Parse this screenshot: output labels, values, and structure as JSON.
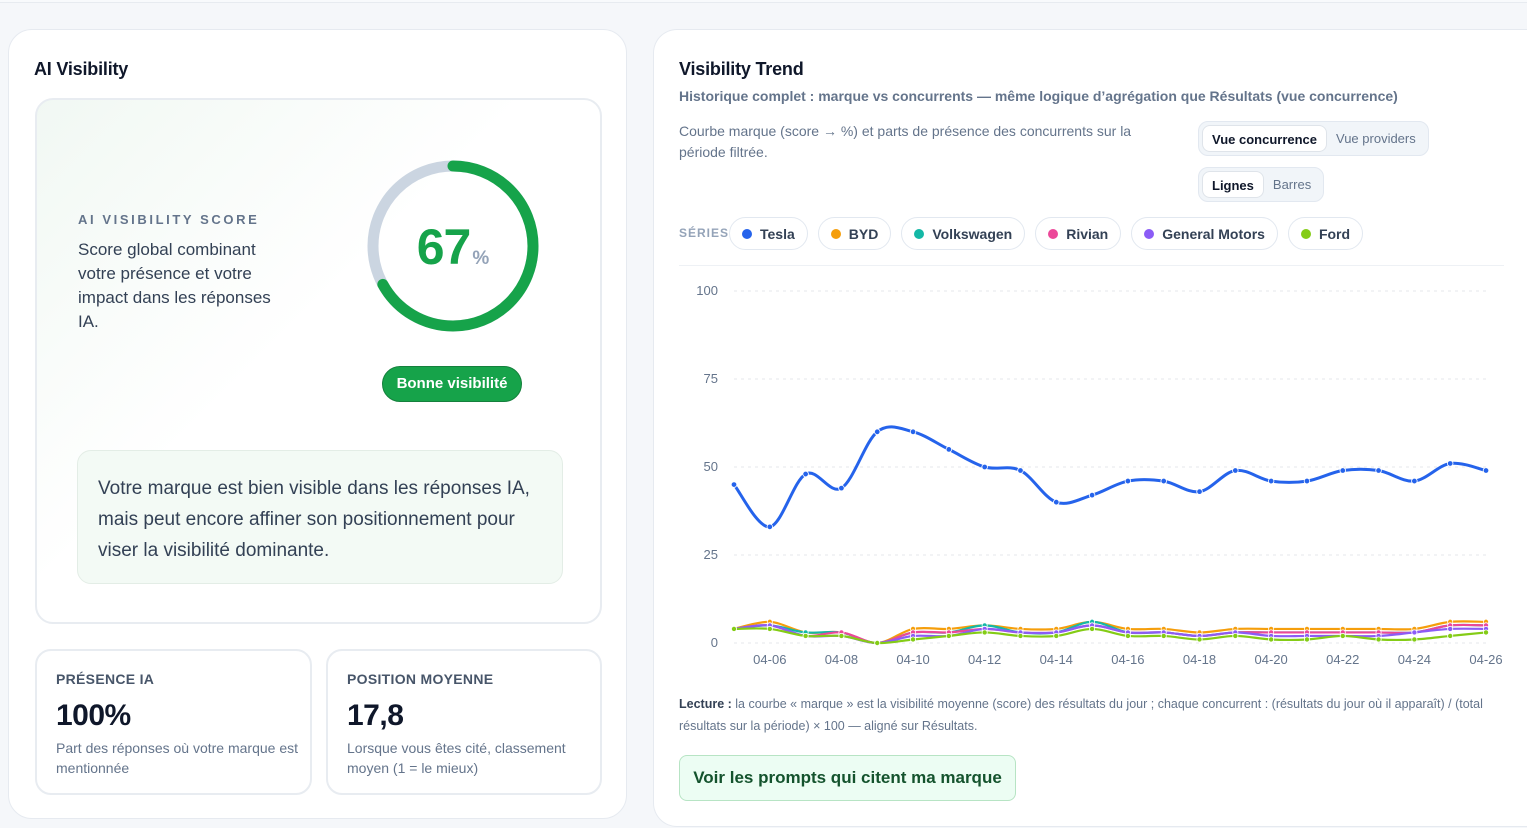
{
  "left": {
    "title": "AI Visibility",
    "score": {
      "kicker": "AI VISIBILITY SCORE",
      "description": "Score global combinant votre présence et votre impact dans les réponses IA.",
      "value": 67,
      "value_text": "67",
      "unit": "%",
      "badge": "Bonne visibilité",
      "verdict": "Votre marque est bien visible dans les réponses IA, mais peut encore affiner son positionnement pour viser la visibilité dominante."
    },
    "metrics": [
      {
        "label": "PRÉSENCE IA",
        "value": "100%",
        "description": "Part des réponses où votre marque est mentionnée"
      },
      {
        "label": "POSITION MOYENNE",
        "value": "17,8",
        "description": "Lorsque vous êtes cité, classement moyen (1 = le mieux)"
      }
    ]
  },
  "right": {
    "title": "Visibility Trend",
    "subtitle": "Historique complet : marque vs concurrents — même logique d’agrégation que Résultats (vue concurrence)",
    "description": "Courbe marque (score → %) et parts de présence des concurrents sur la période filtrée.",
    "view_toggle": [
      "Vue concurrence",
      "Vue providers"
    ],
    "view_active": "Vue concurrence",
    "chart_toggle": [
      "Lignes",
      "Barres"
    ],
    "chart_active": "Lignes",
    "series_label": "SÉRIES",
    "reading_label": "Lecture :",
    "reading_text": " la courbe « marque » est la visibilité moyenne (score) des résultats du jour ; chaque concurrent : (résultats du jour où il apparaît) / (total résultats sur la période) × 100 — aligné sur Résultats.",
    "cta": "Voir les prompts qui citent ma marque"
  },
  "colors": {
    "accent_green": "#16a34a",
    "gauge_track": "#cbd5e1"
  },
  "chart_data": {
    "type": "line",
    "title": "Visibility Trend",
    "xlabel": "",
    "ylabel": "",
    "ylim": [
      0,
      100
    ],
    "yticks": [
      0,
      25,
      50,
      75,
      100
    ],
    "x": [
      "04-05",
      "04-06",
      "04-07",
      "04-08",
      "04-09",
      "04-10",
      "04-11",
      "04-12",
      "04-13",
      "04-14",
      "04-15",
      "04-16",
      "04-17",
      "04-18",
      "04-19",
      "04-20",
      "04-21",
      "04-22",
      "04-23",
      "04-24",
      "04-25",
      "04-26"
    ],
    "xtick_labels": [
      "04-06",
      "04-08",
      "04-10",
      "04-12",
      "04-14",
      "04-16",
      "04-18",
      "04-20",
      "04-22",
      "04-24",
      "04-26"
    ],
    "series": [
      {
        "name": "Tesla",
        "color": "#2563eb",
        "values": [
          45,
          33,
          48,
          44,
          60,
          60,
          55,
          50,
          49,
          40,
          42,
          46,
          46,
          43,
          49,
          46,
          46,
          49,
          49,
          46,
          51,
          49
        ]
      },
      {
        "name": "BYD",
        "color": "#f59e0b",
        "values": [
          4,
          6,
          3,
          3,
          0,
          4,
          4,
          5,
          4,
          4,
          6,
          4,
          4,
          3,
          4,
          4,
          4,
          4,
          4,
          4,
          6,
          6
        ]
      },
      {
        "name": "Volkswagen",
        "color": "#14b8a6",
        "values": [
          4,
          5,
          3,
          3,
          0,
          3,
          3,
          5,
          3,
          3,
          6,
          3,
          3,
          2,
          3,
          3,
          3,
          3,
          3,
          3,
          5,
          5
        ]
      },
      {
        "name": "Rivian",
        "color": "#ec4899",
        "values": [
          4,
          5,
          2,
          3,
          0,
          3,
          3,
          4,
          3,
          3,
          5,
          3,
          3,
          2,
          3,
          3,
          3,
          3,
          3,
          3,
          5,
          5
        ]
      },
      {
        "name": "General Motors",
        "color": "#8b5cf6",
        "values": [
          4,
          5,
          2,
          2,
          0,
          2,
          2,
          4,
          3,
          3,
          5,
          3,
          3,
          2,
          3,
          2,
          2,
          2,
          2,
          3,
          4,
          4
        ]
      },
      {
        "name": "Ford",
        "color": "#84cc16",
        "values": [
          4,
          4,
          2,
          2,
          0,
          1,
          2,
          3,
          2,
          2,
          4,
          2,
          2,
          1,
          2,
          1,
          1,
          2,
          1,
          1,
          2,
          3
        ]
      }
    ]
  }
}
